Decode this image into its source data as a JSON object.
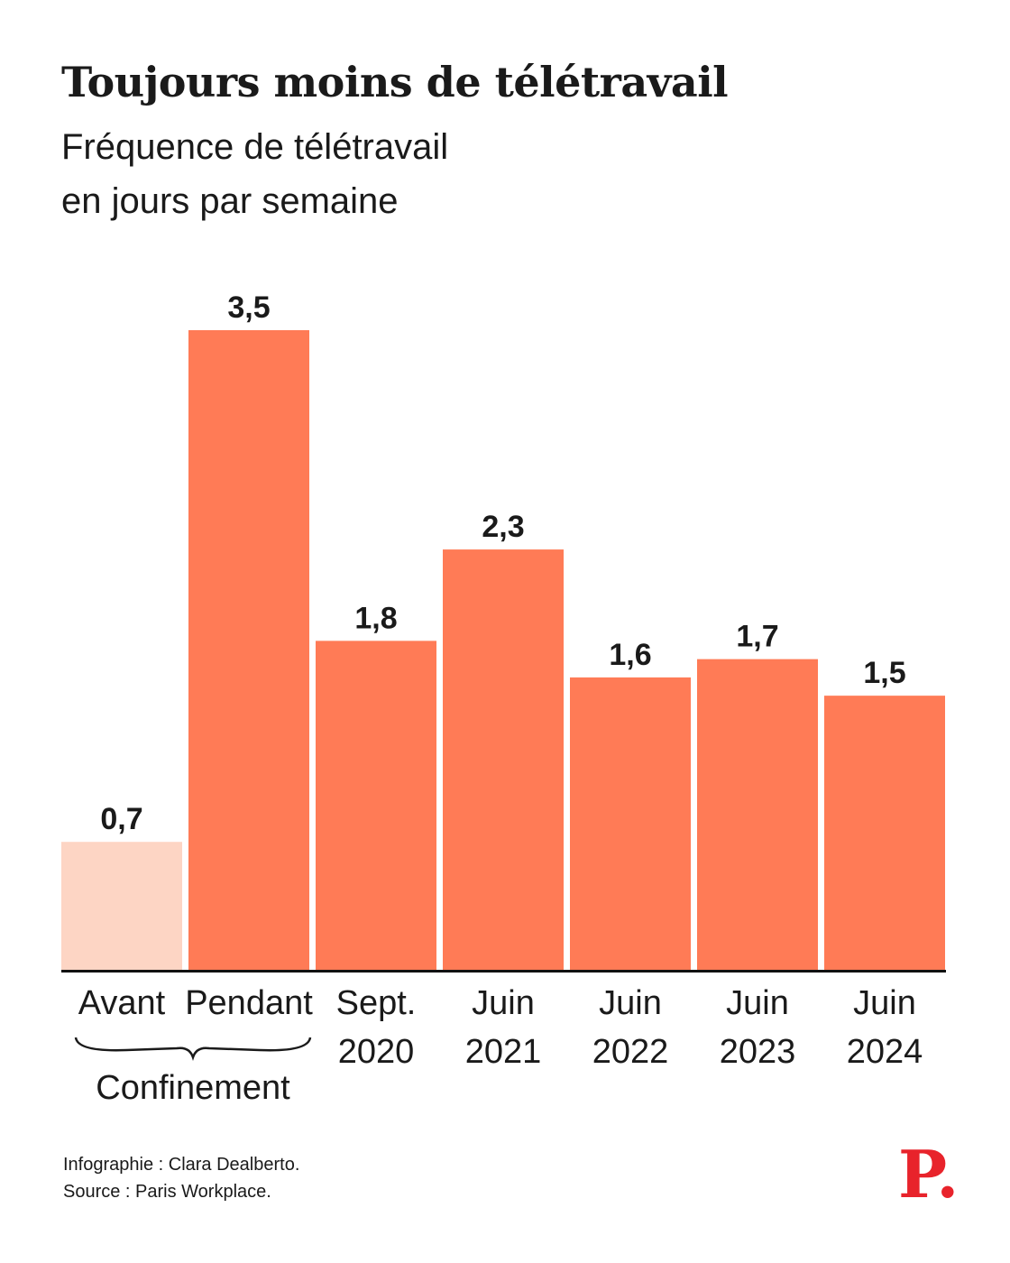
{
  "title": "Toujours moins de télétravail",
  "subtitle": [
    "Fréquence de télétravail",
    "en jours par semaine"
  ],
  "group_label": "Confinement",
  "credits": [
    "Infographie : Clara Dealberto.",
    "Source : Paris Workplace."
  ],
  "logo_text": "P.",
  "colors": {
    "bar": "#ff7b56",
    "bar_before": "#fdd5c4",
    "axis": "#111111",
    "text": "#1a1a1a",
    "logo": "#e8232b"
  },
  "chart_data": {
    "type": "bar",
    "title": "Toujours moins de télétravail",
    "subtitle": "Fréquence de télétravail en jours par semaine",
    "categories": [
      [
        "Avant"
      ],
      [
        "Pendant"
      ],
      [
        "Sept.",
        "2020"
      ],
      [
        "Juin",
        "2021"
      ],
      [
        "Juin",
        "2022"
      ],
      [
        "Juin",
        "2023"
      ],
      [
        "Juin",
        "2024"
      ]
    ],
    "values": [
      0.7,
      3.5,
      1.8,
      2.3,
      1.6,
      1.7,
      1.5
    ],
    "value_labels": [
      "0,7",
      "3,5",
      "1,8",
      "2,3",
      "1,6",
      "1,7",
      "1,5"
    ],
    "bar_colors": [
      "bar_before",
      "bar",
      "bar",
      "bar",
      "bar",
      "bar",
      "bar"
    ],
    "ylim": [
      0,
      3.5
    ],
    "grid": false,
    "legend": "none",
    "xlabel": "",
    "ylabel": ""
  }
}
